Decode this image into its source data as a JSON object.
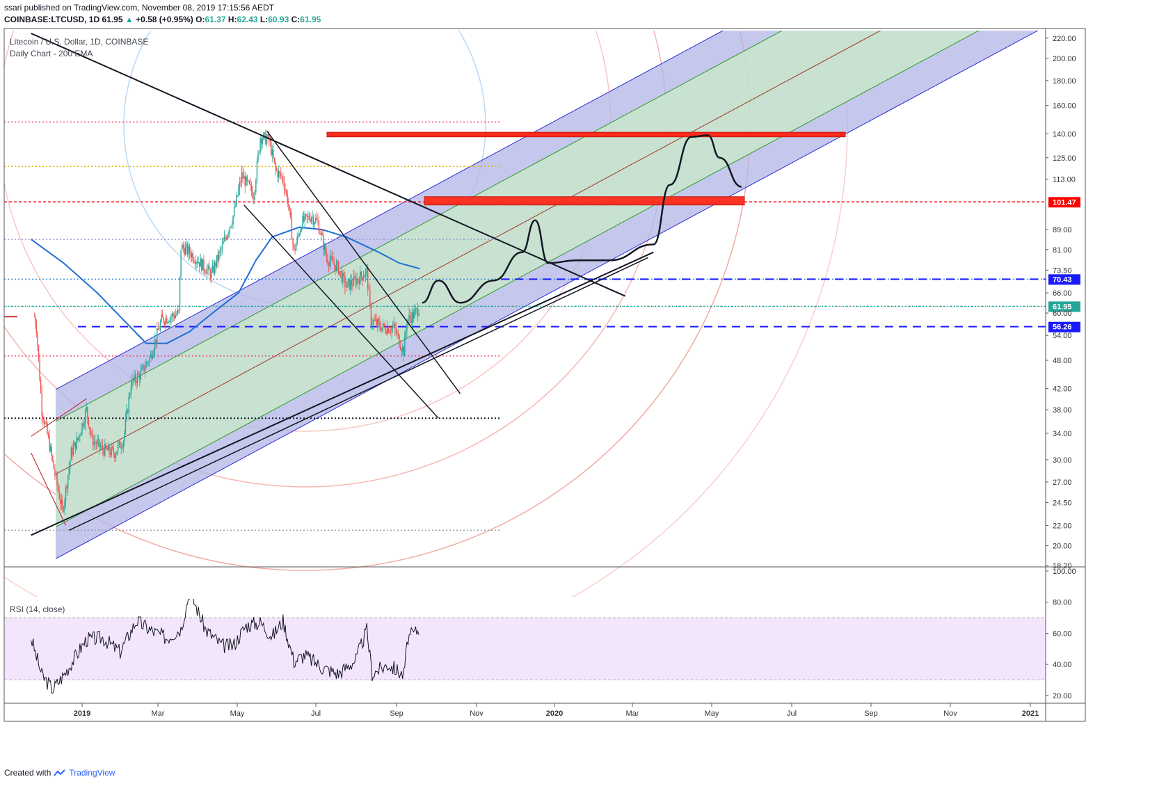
{
  "header": {
    "published_line": "ssari published on TradingView.com, November 08, 2019 17:15:56 AEDT",
    "symbol_line": "COINBASE:LTCUSD, 1D",
    "last": "61.95",
    "change": "+0.58 (+0.95%)",
    "o_label": "O:",
    "o": "61.37",
    "h_label": "H:",
    "h": "62.43",
    "l_label": "L:",
    "l": "60.93",
    "c_label": "C:",
    "c": "61.95"
  },
  "main_pane": {
    "title": "Litecoin / U.S. Dollar, 1D, COINBASE",
    "subtitle": "Daily Chart - 200 EMA"
  },
  "rsi_pane": {
    "title": "RSI (14, close)"
  },
  "footer": {
    "created_with": "Created with",
    "brand": "TradingView"
  },
  "colors": {
    "up": "#26a69a",
    "down": "#ef5350",
    "ema": "#1e6ed4",
    "channel_outer": "#b2b6e6",
    "channel_inner": "#c8eac8",
    "resistance_box": "#ff2a1a",
    "blue_level": "#1a1aff",
    "red_level": "#ff0000",
    "current": "#26a69a",
    "rsi_band": "#f3e5fc"
  },
  "chart_data": [
    {
      "type": "candlestick",
      "title": "Litecoin / U.S. Dollar, 1D, COINBASE",
      "indicator": "200 EMA",
      "y_scale": "log",
      "ylim": [
        18.2,
        225
      ],
      "y_ticks": [
        "220.00",
        "200.00",
        "180.00",
        "160.00",
        "140.00",
        "125.00",
        "113.00",
        "101.47",
        "89.00",
        "81.00",
        "73.50",
        "70.43",
        "66.00",
        "61.95",
        "60.00",
        "56.26",
        "54.00",
        "48.00",
        "42.00",
        "38.00",
        "34.00",
        "30.00",
        "27.00",
        "24.50",
        "22.00",
        "20.00",
        "18.20"
      ],
      "x_ticks": [
        "2019",
        "Mar",
        "May",
        "Jul",
        "Sep",
        "Nov",
        "2020",
        "Mar",
        "May",
        "Jul",
        "Sep",
        "Nov",
        "2021"
      ],
      "price_path": [
        [
          "2018-11-18",
          59
        ],
        [
          "2018-11-20",
          56
        ],
        [
          "2018-11-25",
          38
        ],
        [
          "2018-12-01",
          33
        ],
        [
          "2018-12-07",
          28
        ],
        [
          "2018-12-14",
          23.5
        ],
        [
          "2018-12-22",
          31
        ],
        [
          "2018-12-28",
          33
        ],
        [
          "2019-01-05",
          38
        ],
        [
          "2019-01-10",
          33
        ],
        [
          "2019-01-20",
          31.5
        ],
        [
          "2019-01-31",
          31
        ],
        [
          "2019-02-08",
          33
        ],
        [
          "2019-02-15",
          43
        ],
        [
          "2019-02-24",
          45
        ],
        [
          "2019-03-05",
          49
        ],
        [
          "2019-03-15",
          58
        ],
        [
          "2019-03-31",
          60
        ],
        [
          "2019-04-02",
          82
        ],
        [
          "2019-04-10",
          80
        ],
        [
          "2019-04-20",
          76
        ],
        [
          "2019-04-30",
          72
        ],
        [
          "2019-05-10",
          82
        ],
        [
          "2019-05-20",
          95
        ],
        [
          "2019-05-28",
          115
        ],
        [
          "2019-06-08",
          105
        ],
        [
          "2019-06-14",
          138
        ],
        [
          "2019-06-22",
          136
        ],
        [
          "2019-06-28",
          118
        ],
        [
          "2019-07-05",
          113
        ],
        [
          "2019-07-10",
          100
        ],
        [
          "2019-07-15",
          80
        ],
        [
          "2019-07-22",
          92
        ],
        [
          "2019-07-31",
          95
        ],
        [
          "2019-08-06",
          92
        ],
        [
          "2019-08-14",
          78
        ],
        [
          "2019-08-25",
          74
        ],
        [
          "2019-09-01",
          68
        ],
        [
          "2019-09-10",
          70
        ],
        [
          "2019-09-20",
          73
        ],
        [
          "2019-09-24",
          58
        ],
        [
          "2019-10-05",
          56
        ],
        [
          "2019-10-15",
          56
        ],
        [
          "2019-10-24",
          50
        ],
        [
          "2019-10-27",
          58
        ],
        [
          "2019-11-04",
          60
        ],
        [
          "2019-11-08",
          61.95
        ]
      ],
      "ema_200": [
        [
          "2018-11-15",
          85
        ],
        [
          "2018-12-15",
          76
        ],
        [
          "2019-01-15",
          66
        ],
        [
          "2019-02-15",
          56
        ],
        [
          "2019-03-01",
          52
        ],
        [
          "2019-03-20",
          52
        ],
        [
          "2019-04-10",
          55
        ],
        [
          "2019-05-01",
          60
        ],
        [
          "2019-05-25",
          66
        ],
        [
          "2019-06-10",
          77
        ],
        [
          "2019-06-25",
          86
        ],
        [
          "2019-07-20",
          90
        ],
        [
          "2019-08-10",
          89
        ],
        [
          "2019-09-01",
          86
        ],
        [
          "2019-10-01",
          80
        ],
        [
          "2019-10-20",
          76
        ],
        [
          "2019-11-08",
          74
        ]
      ],
      "levels": [
        101.47,
        70.43,
        61.95,
        56.26
      ],
      "dotted_levels": [
        148,
        120,
        85,
        70.43,
        61.95,
        49,
        36.5,
        21.5
      ],
      "resistance_zones": [
        [
          138,
          141
        ],
        [
          100,
          104
        ]
      ],
      "channel_mid": [
        [
          "2018-12-20",
          29
        ],
        [
          "2020-10-01",
          175
        ]
      ],
      "projection": [
        [
          "2019-11-10",
          63
        ],
        [
          "2019-11-25",
          70
        ],
        [
          "2019-12-15",
          63
        ],
        [
          "2020-01-15",
          70
        ],
        [
          "2020-02-10",
          80
        ],
        [
          "2020-02-22",
          93
        ],
        [
          "2020-03-05",
          76
        ],
        [
          "2020-04-01",
          77
        ],
        [
          "2020-05-01",
          77
        ],
        [
          "2020-06-10",
          83
        ],
        [
          "2020-06-25",
          110
        ],
        [
          "2020-07-15",
          138
        ],
        [
          "2020-07-30",
          139
        ],
        [
          "2020-08-10",
          125
        ],
        [
          "2020-08-30",
          109
        ]
      ]
    },
    {
      "type": "line",
      "title": "RSI (14, close)",
      "ylim": [
        15,
        100
      ],
      "y_ticks": [
        "100.00",
        "80.00",
        "60.00",
        "40.00",
        "20.00"
      ],
      "band": [
        30,
        70
      ],
      "x": [
        "2018-11-15",
        "2018-11-25",
        "2018-12-05",
        "2018-12-15",
        "2018-12-25",
        "2019-01-05",
        "2019-01-20",
        "2019-02-05",
        "2019-02-20",
        "2019-03-05",
        "2019-03-20",
        "2019-04-02",
        "2019-04-10",
        "2019-04-25",
        "2019-05-10",
        "2019-05-20",
        "2019-06-01",
        "2019-06-14",
        "2019-06-25",
        "2019-07-05",
        "2019-07-15",
        "2019-07-25",
        "2019-08-10",
        "2019-08-25",
        "2019-09-10",
        "2019-09-20",
        "2019-09-25",
        "2019-10-10",
        "2019-10-24",
        "2019-10-28",
        "2019-11-08"
      ],
      "values": [
        57,
        33,
        24,
        33,
        44,
        56,
        57,
        48,
        68,
        62,
        57,
        63,
        87,
        62,
        52,
        52,
        65,
        67,
        58,
        68,
        42,
        46,
        38,
        34,
        43,
        62,
        34,
        40,
        33,
        57,
        63
      ]
    }
  ]
}
